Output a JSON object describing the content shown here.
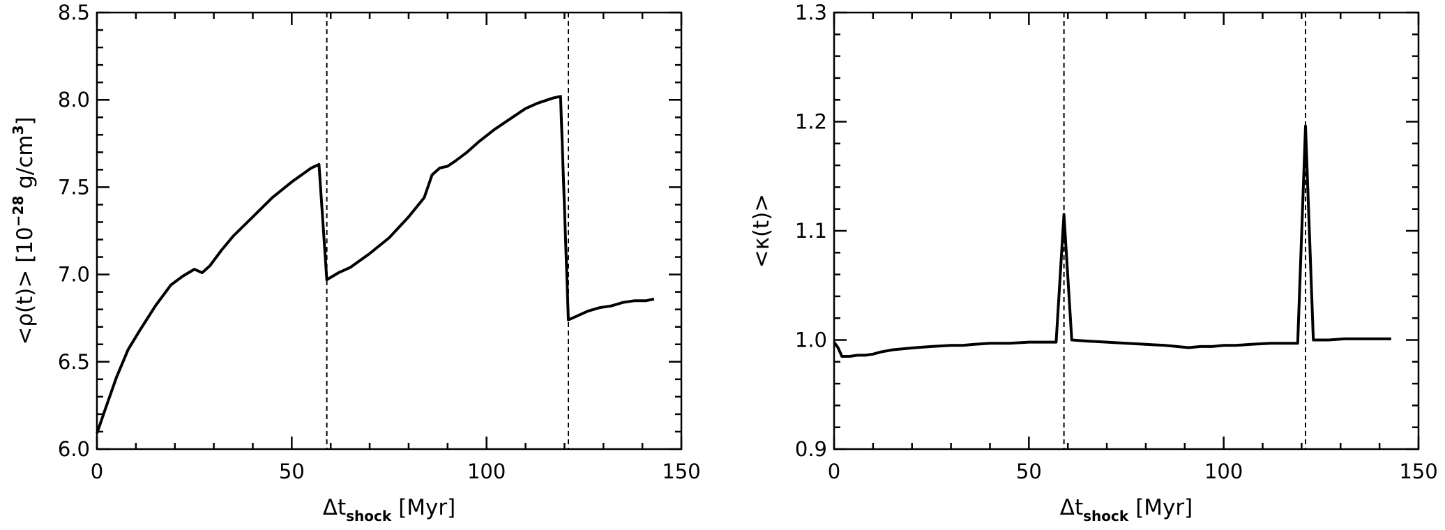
{
  "chart_data": [
    {
      "type": "line",
      "title": "",
      "xlabel": {
        "main": "Δt",
        "sub": "shock",
        "unit": "[Myr]"
      },
      "ylabel": {
        "prefix": "<ρ(t)> [10",
        "exp": "−28",
        "mid": " g/cm",
        "sup": "3",
        "suffix": "]"
      },
      "xlim": [
        0,
        150
      ],
      "ylim": [
        6.0,
        8.5
      ],
      "xticks": [
        0,
        50,
        100,
        150
      ],
      "xtick_labels": [
        "0",
        "50",
        "100",
        "150"
      ],
      "yticks": [
        6.0,
        6.5,
        7.0,
        7.5,
        8.0,
        8.5
      ],
      "ytick_labels": [
        "6.0",
        "6.5",
        "7.0",
        "7.5",
        "8.0",
        "8.5"
      ],
      "vlines": [
        59,
        121
      ],
      "series": [
        {
          "x": [
            0,
            2,
            5,
            8,
            11,
            15,
            19,
            22,
            25,
            27,
            29,
            32,
            35,
            40,
            45,
            50,
            55,
            57,
            59,
            62,
            65,
            70,
            75,
            80,
            84,
            86,
            88,
            90,
            92,
            95,
            98,
            102,
            106,
            110,
            113,
            117,
            119,
            121,
            123,
            126,
            129,
            132,
            135,
            138,
            141,
            143
          ],
          "y": [
            6.09,
            6.22,
            6.41,
            6.57,
            6.68,
            6.82,
            6.94,
            6.99,
            7.03,
            7.01,
            7.05,
            7.14,
            7.22,
            7.33,
            7.44,
            7.53,
            7.61,
            7.63,
            6.97,
            7.01,
            7.04,
            7.12,
            7.21,
            7.33,
            7.44,
            7.57,
            7.61,
            7.62,
            7.65,
            7.7,
            7.76,
            7.83,
            7.89,
            7.95,
            7.98,
            8.01,
            8.02,
            6.74,
            6.76,
            6.79,
            6.81,
            6.82,
            6.84,
            6.85,
            6.85,
            6.86
          ]
        }
      ]
    },
    {
      "type": "line",
      "title": "",
      "xlabel": {
        "main": "Δt",
        "sub": "shock",
        "unit": "[Myr]"
      },
      "ylabel": {
        "text": "<κ(t)>"
      },
      "xlim": [
        0,
        150
      ],
      "ylim": [
        0.9,
        1.3
      ],
      "xticks": [
        0,
        50,
        100,
        150
      ],
      "xtick_labels": [
        "0",
        "50",
        "100",
        "150"
      ],
      "yticks": [
        0.9,
        1.0,
        1.1,
        1.2,
        1.3
      ],
      "ytick_labels": [
        "0.9",
        "1.0",
        "1.1",
        "1.2",
        "1.3"
      ],
      "vlines": [
        59,
        121
      ],
      "series": [
        {
          "x": [
            0,
            1,
            2,
            4,
            6,
            8,
            10,
            12,
            15,
            18,
            21,
            25,
            30,
            33,
            36,
            40,
            45,
            50,
            53,
            57,
            59,
            61,
            65,
            70,
            75,
            80,
            85,
            88,
            91,
            94,
            97,
            100,
            103,
            107,
            112,
            116,
            119,
            121,
            123,
            127,
            131,
            135,
            139,
            143
          ],
          "y": [
            0.998,
            0.993,
            0.985,
            0.985,
            0.986,
            0.986,
            0.987,
            0.989,
            0.991,
            0.992,
            0.993,
            0.994,
            0.995,
            0.995,
            0.996,
            0.997,
            0.997,
            0.998,
            0.998,
            0.998,
            1.115,
            1.0,
            0.999,
            0.998,
            0.997,
            0.996,
            0.995,
            0.994,
            0.993,
            0.994,
            0.994,
            0.995,
            0.995,
            0.996,
            0.997,
            0.997,
            0.997,
            1.196,
            1.0,
            1.0,
            1.001,
            1.001,
            1.001,
            1.001
          ]
        }
      ]
    }
  ]
}
